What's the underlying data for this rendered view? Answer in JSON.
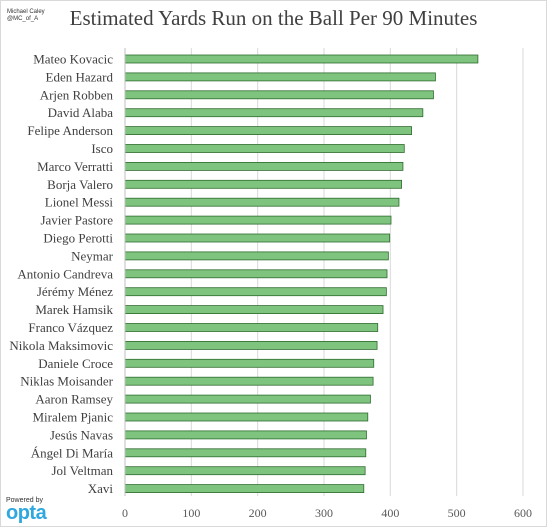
{
  "credit": {
    "line1": "Michael Caley",
    "line2": "@MC_of_A"
  },
  "logo": {
    "small": "Powered by",
    "big": "opta"
  },
  "chart_data": {
    "type": "bar",
    "orientation": "horizontal",
    "title": "Estimated Yards Run on the Ball Per 90 Minutes",
    "xlabel": "",
    "ylabel": "",
    "xlim": [
      0,
      600
    ],
    "xticks": [
      0,
      100,
      200,
      300,
      400,
      500,
      600
    ],
    "grid": true,
    "bar_color": "#7ec47e",
    "bar_edge_color": "#2e6b2e",
    "categories": [
      "Mateo Kovacic",
      "Eden Hazard",
      "Arjen Robben",
      "David Alaba",
      "Felipe Anderson",
      "Isco",
      "Marco Verratti",
      "Borja Valero",
      "Lionel Messi",
      "Javier Pastore",
      "Diego Perotti",
      "Neymar",
      "Antonio Candreva",
      "Jérémy Ménez",
      "Marek Hamsik",
      "Franco Vázquez",
      "Nikola Maksimovic",
      "Daniele Croce",
      "Niklas Moisander",
      "Aaron Ramsey",
      "Miralem Pjanic",
      "Jesús Navas",
      "Ángel Di María",
      "Jol Veltman",
      "Xavi"
    ],
    "values": [
      532,
      468,
      465,
      449,
      432,
      421,
      419,
      417,
      413,
      401,
      399,
      397,
      395,
      394,
      389,
      381,
      380,
      375,
      374,
      370,
      366,
      364,
      363,
      362,
      360
    ]
  }
}
